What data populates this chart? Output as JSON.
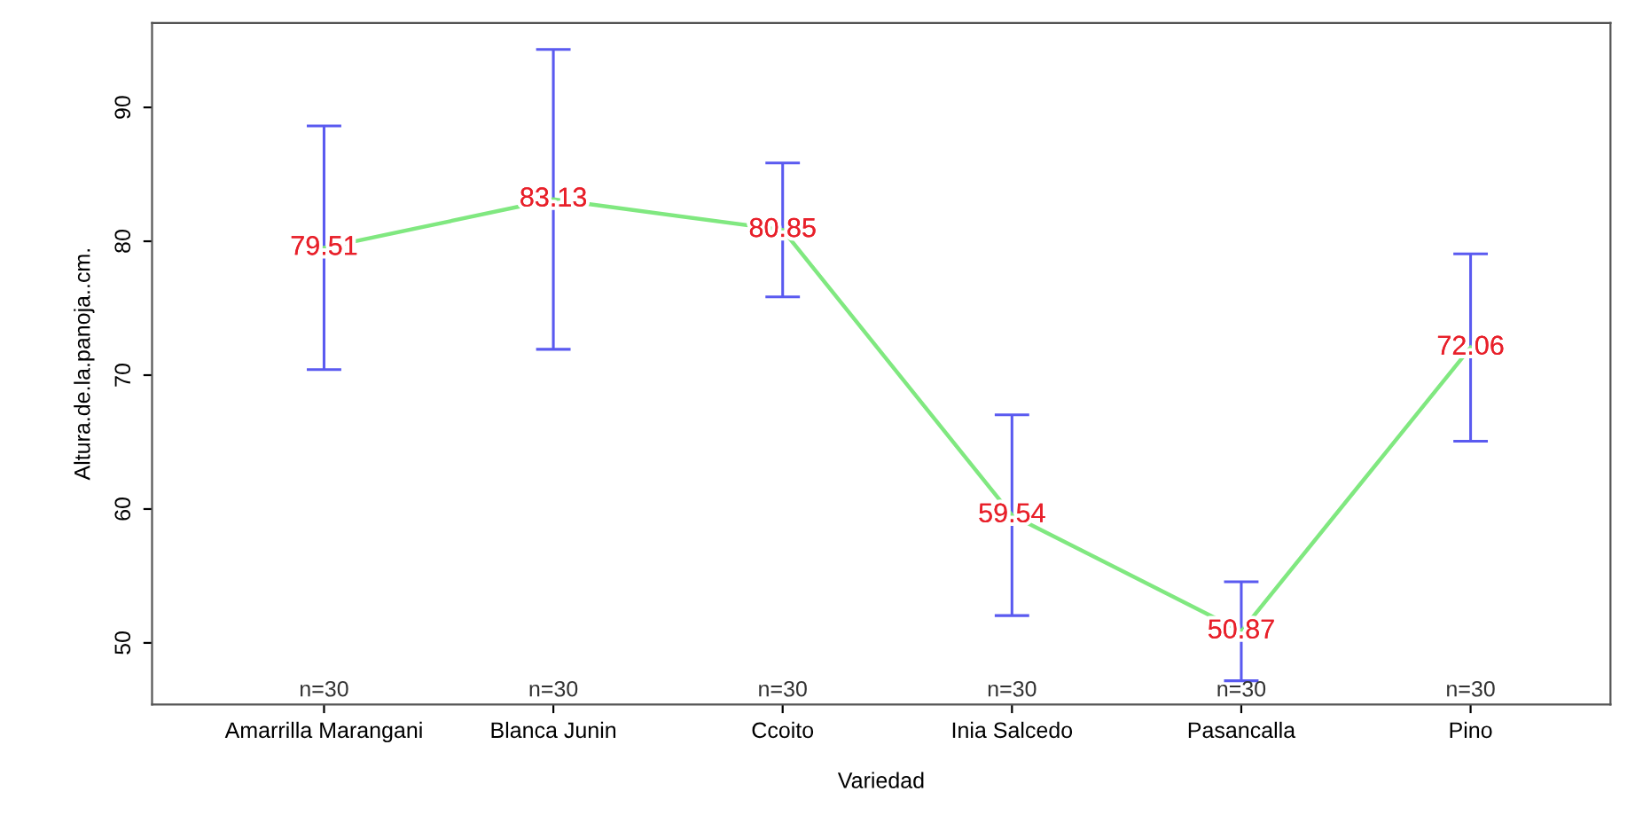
{
  "chart_data": {
    "type": "line",
    "xlabel": "Variedad",
    "ylabel": "Altura.de.la.panoja..cm.",
    "categories": [
      "Amarrilla Marangani",
      "Blanca Junin",
      "Ccoito",
      "Inia Salcedo",
      "Pasancalla",
      "Pino"
    ],
    "series": [
      {
        "color": "#80e880",
        "values": [
          79.51,
          83.13,
          80.85,
          59.54,
          50.87,
          72.06
        ],
        "errors": [
          9.1,
          11.2,
          5.0,
          7.5,
          3.7,
          7.0
        ]
      }
    ],
    "data_labels": true,
    "ylim": [
      45.4,
      96.3
    ],
    "yticks": [
      50,
      60,
      70,
      80,
      90
    ],
    "grid": false,
    "legend": false,
    "line_style": "solid",
    "annotations": [
      "n=30",
      "n=30",
      "n=30",
      "n=30",
      "n=30",
      "n=30"
    ]
  }
}
